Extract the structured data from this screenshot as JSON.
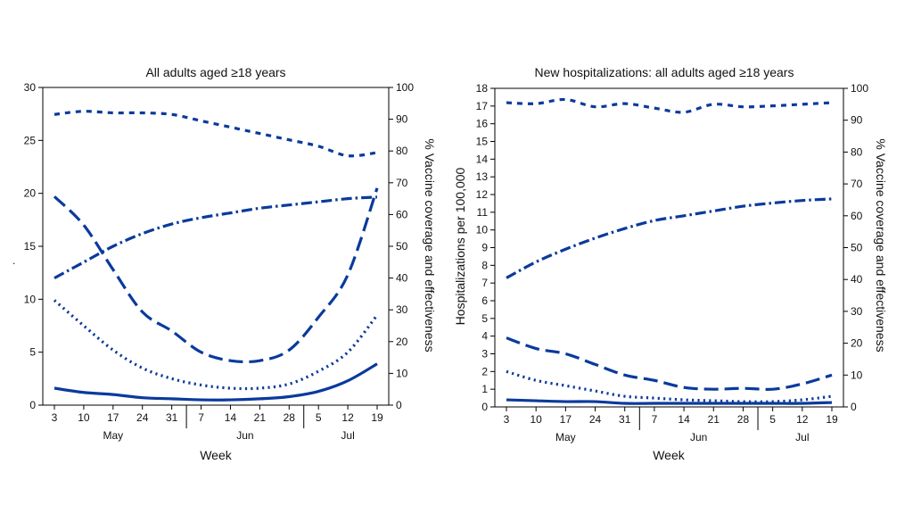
{
  "colors": {
    "series": "#0a3a9c",
    "axis": "#000000"
  },
  "stray_mark": ".",
  "chart_data": [
    {
      "type": "line",
      "title": "All adults aged ≥18 years",
      "xlabel": "Week",
      "ylabel": "",
      "y2label": "% Vaccine coverage and effectiveness",
      "ylim": [
        0,
        30
      ],
      "y2lim": [
        0,
        100
      ],
      "yticks": [
        0,
        5,
        10,
        15,
        20,
        25,
        30
      ],
      "y2ticks": [
        0,
        10,
        20,
        30,
        40,
        50,
        60,
        70,
        80,
        90,
        100
      ],
      "x": [
        "3",
        "10",
        "17",
        "24",
        "31",
        "7",
        "14",
        "21",
        "28",
        "5",
        "12",
        "19"
      ],
      "months": [
        {
          "label": "May",
          "center": 2,
          "start": 0
        },
        {
          "label": "Jun",
          "center": 6.5,
          "start": 4.5
        },
        {
          "label": "Jul",
          "center": 10,
          "start": 8.5
        }
      ],
      "series": [
        {
          "style": "long-dash",
          "axis": "left",
          "values": [
            19.7,
            17.0,
            12.8,
            8.8,
            7.0,
            5.0,
            4.2,
            4.2,
            5.2,
            8.3,
            12.3,
            20.5
          ]
        },
        {
          "style": "dot",
          "axis": "left",
          "values": [
            9.9,
            7.5,
            5.2,
            3.5,
            2.5,
            1.9,
            1.6,
            1.6,
            2.0,
            3.2,
            5.0,
            8.5
          ]
        },
        {
          "style": "solid",
          "axis": "left",
          "values": [
            1.6,
            1.2,
            1.0,
            0.7,
            0.6,
            0.5,
            0.5,
            0.6,
            0.8,
            1.3,
            2.3,
            3.9
          ]
        },
        {
          "style": "dash-dot",
          "axis": "right",
          "values": [
            40,
            45,
            50,
            54,
            57,
            59,
            60.5,
            62,
            63,
            64,
            65,
            65.5
          ]
        },
        {
          "style": "short-dash",
          "axis": "right",
          "values": [
            91.5,
            92.5,
            92,
            92,
            91.5,
            89.5,
            87.5,
            85.5,
            83.5,
            81.5,
            78.5,
            79.5
          ]
        }
      ]
    },
    {
      "type": "line",
      "title": "New hospitalizations: all adults aged ≥18 years",
      "xlabel": "Week",
      "ylabel": "Hospitalizations per 100,000",
      "y2label": "% Vaccine coverage and effectiveness",
      "ylim": [
        0,
        18
      ],
      "y2lim": [
        0,
        100
      ],
      "yticks": [
        0,
        1,
        2,
        3,
        4,
        5,
        6,
        7,
        8,
        9,
        10,
        11,
        12,
        13,
        14,
        15,
        16,
        17,
        18
      ],
      "y2ticks": [
        0,
        10,
        20,
        30,
        40,
        50,
        60,
        70,
        80,
        90,
        100
      ],
      "x": [
        "3",
        "10",
        "17",
        "24",
        "31",
        "7",
        "14",
        "21",
        "28",
        "5",
        "12",
        "19"
      ],
      "months": [
        {
          "label": "May",
          "center": 2,
          "start": 0
        },
        {
          "label": "Jun",
          "center": 6.5,
          "start": 4.5
        },
        {
          "label": "Jul",
          "center": 10,
          "start": 8.5
        }
      ],
      "series": [
        {
          "style": "long-dash",
          "axis": "left",
          "values": [
            3.9,
            3.3,
            3.0,
            2.4,
            1.8,
            1.5,
            1.1,
            1.0,
            1.05,
            1.0,
            1.3,
            1.8
          ]
        },
        {
          "style": "dot",
          "axis": "left",
          "values": [
            2.0,
            1.5,
            1.2,
            0.9,
            0.6,
            0.5,
            0.4,
            0.35,
            0.3,
            0.3,
            0.4,
            0.6
          ]
        },
        {
          "style": "solid",
          "axis": "left",
          "values": [
            0.4,
            0.35,
            0.3,
            0.3,
            0.2,
            0.2,
            0.2,
            0.2,
            0.2,
            0.2,
            0.2,
            0.25
          ]
        },
        {
          "style": "dash-dot",
          "axis": "right",
          "values": [
            40.5,
            45.5,
            49.5,
            53,
            56,
            58.5,
            60,
            61.5,
            63,
            64,
            64.8,
            65.3
          ]
        },
        {
          "style": "short-dash",
          "axis": "right",
          "values": [
            95.5,
            95.2,
            96.5,
            94.2,
            95.2,
            93.8,
            92.5,
            95,
            94.2,
            94.5,
            95,
            95.5
          ]
        }
      ]
    }
  ]
}
